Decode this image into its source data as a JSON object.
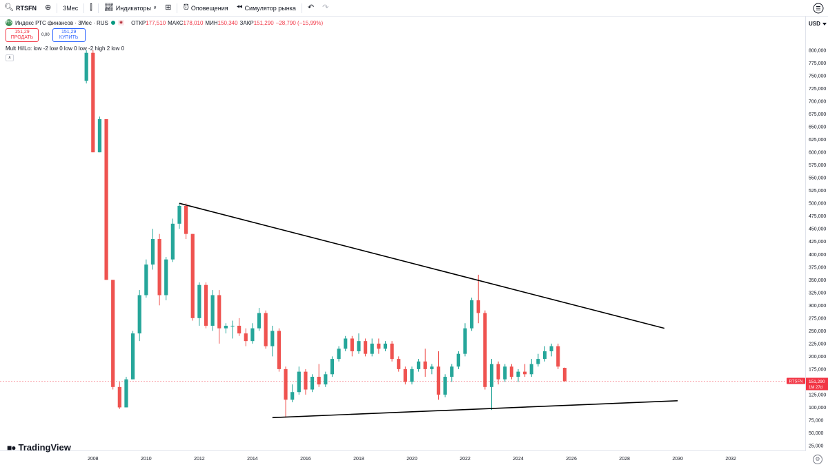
{
  "toolbar": {
    "symbol": "RTSFN",
    "interval": "3Мес",
    "indicators_label": "Индикаторы",
    "alerts_label": "Оповещения",
    "replay_label": "Симулятор рынка"
  },
  "legend": {
    "title": "Индекс РТС финансов · 3Мес · RUS",
    "open_key": "ОТКР",
    "open_val": "177,510",
    "high_key": "МАКС",
    "high_val": "178,010",
    "low_key": "МИН",
    "low_val": "150,340",
    "close_key": "ЗАКР",
    "close_val": "151,290",
    "change_val": "−28,790 (−15,99%)",
    "logo": "RS"
  },
  "trade": {
    "sell_price": "151,29",
    "sell_label": "ПРОДАТЬ",
    "spread": "0,00",
    "buy_price": "151,29",
    "buy_label": "КУПИТЬ"
  },
  "indicator_label": "Mult Hi/Lo: low -2 low 0 low 0 low -2 high 2 low 0",
  "price_axis": {
    "currency": "USD"
  },
  "branding": {
    "logo_text": "TradingView"
  },
  "colors": {
    "up": "#26a69a",
    "down": "#ef5350",
    "trendline": "#000000",
    "price_line": "#f23645"
  },
  "chart_data": {
    "type": "candlestick",
    "title": "Индекс РТС финансов · 3Мес · RUS",
    "timeframe": "quarterly",
    "ylim": [
      0,
      820000
    ],
    "y_ticks": [
      25000,
      50000,
      75000,
      100000,
      125000,
      150000,
      175000,
      200000,
      225000,
      250000,
      275000,
      300000,
      325000,
      350000,
      375000,
      400000,
      425000,
      450000,
      475000,
      500000,
      525000,
      550000,
      575000,
      600000,
      625000,
      650000,
      675000,
      700000,
      725000,
      750000,
      775000,
      800000
    ],
    "x_ticks": [
      "2008",
      "2010",
      "2012",
      "2014",
      "2016",
      "2018",
      "2020",
      "2022",
      "2024",
      "2026",
      "2028",
      "2030",
      "2032"
    ],
    "xlim": [
      2004.5,
      2034.8
    ],
    "last_price": {
      "value": 151290,
      "label": "RTSFN",
      "price_label": "151,290",
      "countdown": "1М 27d"
    },
    "candles": [
      {
        "t": 2007.75,
        "o": 740000,
        "h": 800000,
        "l": 735000,
        "c": 795000
      },
      {
        "t": 2008.0,
        "o": 795000,
        "h": 800000,
        "l": 600000,
        "c": 600000
      },
      {
        "t": 2008.25,
        "o": 600000,
        "h": 670000,
        "l": 600000,
        "c": 665000
      },
      {
        "t": 2008.5,
        "o": 665000,
        "h": 665000,
        "l": 350000,
        "c": 350000
      },
      {
        "t": 2008.75,
        "o": 350000,
        "h": 350000,
        "l": 135000,
        "c": 140000
      },
      {
        "t": 2009.0,
        "o": 140000,
        "h": 150000,
        "l": 97000,
        "c": 100000
      },
      {
        "t": 2009.25,
        "o": 100000,
        "h": 160000,
        "l": 100000,
        "c": 155000
      },
      {
        "t": 2009.5,
        "o": 155000,
        "h": 250000,
        "l": 155000,
        "c": 245000
      },
      {
        "t": 2009.75,
        "o": 245000,
        "h": 330000,
        "l": 230000,
        "c": 320000
      },
      {
        "t": 2010.0,
        "o": 320000,
        "h": 390000,
        "l": 315000,
        "c": 380000
      },
      {
        "t": 2010.25,
        "o": 380000,
        "h": 450000,
        "l": 370000,
        "c": 430000
      },
      {
        "t": 2010.5,
        "o": 430000,
        "h": 440000,
        "l": 300000,
        "c": 320000
      },
      {
        "t": 2010.75,
        "o": 320000,
        "h": 395000,
        "l": 310000,
        "c": 390000
      },
      {
        "t": 2011.0,
        "o": 390000,
        "h": 470000,
        "l": 385000,
        "c": 460000
      },
      {
        "t": 2011.25,
        "o": 460000,
        "h": 500000,
        "l": 450000,
        "c": 495000
      },
      {
        "t": 2011.5,
        "o": 495000,
        "h": 500000,
        "l": 430000,
        "c": 440000
      },
      {
        "t": 2011.75,
        "o": 440000,
        "h": 440000,
        "l": 270000,
        "c": 275000
      },
      {
        "t": 2012.0,
        "o": 275000,
        "h": 345000,
        "l": 260000,
        "c": 340000
      },
      {
        "t": 2012.25,
        "o": 340000,
        "h": 345000,
        "l": 255000,
        "c": 260000
      },
      {
        "t": 2012.5,
        "o": 260000,
        "h": 330000,
        "l": 250000,
        "c": 320000
      },
      {
        "t": 2012.75,
        "o": 320000,
        "h": 330000,
        "l": 225000,
        "c": 255000
      },
      {
        "t": 2013.0,
        "o": 255000,
        "h": 265000,
        "l": 245000,
        "c": 260000
      },
      {
        "t": 2013.25,
        "o": 260000,
        "h": 270000,
        "l": 235000,
        "c": 260000
      },
      {
        "t": 2013.5,
        "o": 260000,
        "h": 275000,
        "l": 240000,
        "c": 245000
      },
      {
        "t": 2013.75,
        "o": 245000,
        "h": 255000,
        "l": 220000,
        "c": 230000
      },
      {
        "t": 2014.0,
        "o": 230000,
        "h": 265000,
        "l": 225000,
        "c": 255000
      },
      {
        "t": 2014.25,
        "o": 255000,
        "h": 295000,
        "l": 250000,
        "c": 285000
      },
      {
        "t": 2014.5,
        "o": 285000,
        "h": 290000,
        "l": 215000,
        "c": 220000
      },
      {
        "t": 2014.75,
        "o": 220000,
        "h": 260000,
        "l": 200000,
        "c": 250000
      },
      {
        "t": 2015.0,
        "o": 250000,
        "h": 255000,
        "l": 170000,
        "c": 175000
      },
      {
        "t": 2015.25,
        "o": 175000,
        "h": 180000,
        "l": 80000,
        "c": 115000
      },
      {
        "t": 2015.5,
        "o": 115000,
        "h": 145000,
        "l": 110000,
        "c": 130000
      },
      {
        "t": 2015.75,
        "o": 130000,
        "h": 180000,
        "l": 125000,
        "c": 170000
      },
      {
        "t": 2016.0,
        "o": 170000,
        "h": 175000,
        "l": 125000,
        "c": 135000
      },
      {
        "t": 2016.25,
        "o": 135000,
        "h": 165000,
        "l": 130000,
        "c": 160000
      },
      {
        "t": 2016.5,
        "o": 160000,
        "h": 185000,
        "l": 140000,
        "c": 145000
      },
      {
        "t": 2016.75,
        "o": 145000,
        "h": 170000,
        "l": 140000,
        "c": 165000
      },
      {
        "t": 2017.0,
        "o": 165000,
        "h": 200000,
        "l": 160000,
        "c": 195000
      },
      {
        "t": 2017.25,
        "o": 195000,
        "h": 220000,
        "l": 190000,
        "c": 215000
      },
      {
        "t": 2017.5,
        "o": 215000,
        "h": 240000,
        "l": 210000,
        "c": 235000
      },
      {
        "t": 2017.75,
        "o": 235000,
        "h": 240000,
        "l": 200000,
        "c": 210000
      },
      {
        "t": 2018.0,
        "o": 210000,
        "h": 245000,
        "l": 205000,
        "c": 230000
      },
      {
        "t": 2018.25,
        "o": 230000,
        "h": 235000,
        "l": 200000,
        "c": 205000
      },
      {
        "t": 2018.5,
        "o": 205000,
        "h": 235000,
        "l": 200000,
        "c": 225000
      },
      {
        "t": 2018.75,
        "o": 225000,
        "h": 235000,
        "l": 205000,
        "c": 215000
      },
      {
        "t": 2019.0,
        "o": 215000,
        "h": 230000,
        "l": 210000,
        "c": 225000
      },
      {
        "t": 2019.25,
        "o": 225000,
        "h": 230000,
        "l": 190000,
        "c": 195000
      },
      {
        "t": 2019.5,
        "o": 195000,
        "h": 200000,
        "l": 170000,
        "c": 175000
      },
      {
        "t": 2019.75,
        "o": 175000,
        "h": 180000,
        "l": 145000,
        "c": 150000
      },
      {
        "t": 2020.0,
        "o": 150000,
        "h": 180000,
        "l": 145000,
        "c": 175000
      },
      {
        "t": 2020.25,
        "o": 175000,
        "h": 195000,
        "l": 170000,
        "c": 190000
      },
      {
        "t": 2020.5,
        "o": 190000,
        "h": 215000,
        "l": 160000,
        "c": 175000
      },
      {
        "t": 2020.75,
        "o": 175000,
        "h": 185000,
        "l": 165000,
        "c": 180000
      },
      {
        "t": 2021.0,
        "o": 180000,
        "h": 210000,
        "l": 115000,
        "c": 125000
      },
      {
        "t": 2021.25,
        "o": 125000,
        "h": 165000,
        "l": 120000,
        "c": 160000
      },
      {
        "t": 2021.5,
        "o": 160000,
        "h": 185000,
        "l": 150000,
        "c": 180000
      },
      {
        "t": 2021.75,
        "o": 180000,
        "h": 210000,
        "l": 175000,
        "c": 205000
      },
      {
        "t": 2022.0,
        "o": 205000,
        "h": 265000,
        "l": 200000,
        "c": 255000
      },
      {
        "t": 2022.25,
        "o": 255000,
        "h": 315000,
        "l": 250000,
        "c": 310000
      },
      {
        "t": 2022.5,
        "o": 310000,
        "h": 360000,
        "l": 265000,
        "c": 285000
      },
      {
        "t": 2022.75,
        "o": 285000,
        "h": 290000,
        "l": 135000,
        "c": 140000
      },
      {
        "t": 2023.0,
        "o": 140000,
        "h": 195000,
        "l": 95000,
        "c": 185000
      },
      {
        "t": 2023.25,
        "o": 185000,
        "h": 190000,
        "l": 145000,
        "c": 155000
      },
      {
        "t": 2023.5,
        "o": 155000,
        "h": 185000,
        "l": 150000,
        "c": 180000
      },
      {
        "t": 2023.75,
        "o": 180000,
        "h": 185000,
        "l": 155000,
        "c": 160000
      },
      {
        "t": 2024.0,
        "o": 160000,
        "h": 175000,
        "l": 150000,
        "c": 170000
      },
      {
        "t": 2024.25,
        "o": 170000,
        "h": 185000,
        "l": 160000,
        "c": 165000
      },
      {
        "t": 2024.5,
        "o": 165000,
        "h": 195000,
        "l": 160000,
        "c": 185000
      },
      {
        "t": 2024.75,
        "o": 185000,
        "h": 205000,
        "l": 180000,
        "c": 195000
      },
      {
        "t": 2025.0,
        "o": 195000,
        "h": 220000,
        "l": 190000,
        "c": 210000
      },
      {
        "t": 2025.25,
        "o": 210000,
        "h": 225000,
        "l": 200000,
        "c": 220000
      },
      {
        "t": 2025.5,
        "o": 220000,
        "h": 225000,
        "l": 175000,
        "c": 180000
      },
      {
        "t": 2025.75,
        "o": 177510,
        "h": 178010,
        "l": 150340,
        "c": 151290
      }
    ],
    "trendlines": [
      {
        "name": "upper-trendline",
        "x1": 2011.25,
        "y1": 500000,
        "x2": 2029.5,
        "y2": 255000
      },
      {
        "name": "lower-trendline",
        "x1": 2014.75,
        "y1": 80000,
        "x2": 2030.0,
        "y2": 113000
      }
    ]
  }
}
